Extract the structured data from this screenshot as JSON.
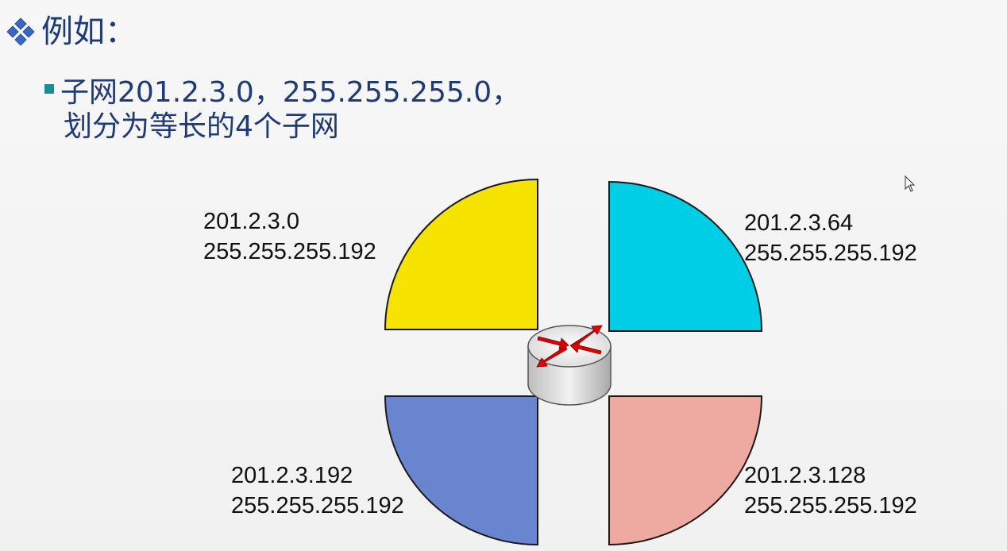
{
  "heading": {
    "text": "例如：",
    "bullet_icon": "diamond-bullet-icon"
  },
  "subpoint": {
    "line1": "子网201.2.3.0，255.255.255.0，",
    "line2": "划分为等长的4个子网"
  },
  "subnets": [
    {
      "network": "201.2.3.0",
      "mask": "255.255.255.192",
      "color": "#f6e400"
    },
    {
      "network": "201.2.3.64",
      "mask": "255.255.255.192",
      "color": "#00cde6"
    },
    {
      "network": "201.2.3.192",
      "mask": "255.255.255.192",
      "color": "#6a85d0"
    },
    {
      "network": "201.2.3.128",
      "mask": "255.255.255.192",
      "color": "#eeaaa0"
    }
  ],
  "router": {
    "icon": "router-icon",
    "arrow_color": "#e00000"
  },
  "colors": {
    "text_blue": "#1f3a78",
    "bullet_teal": "#1d8a9a"
  }
}
